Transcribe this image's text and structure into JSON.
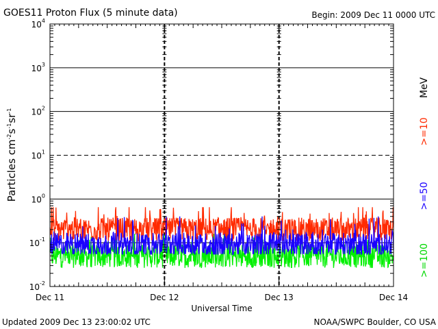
{
  "header": {
    "title": "GOES11 Proton Flux (5 minute data)",
    "begin": "Begin: 2009 Dec 11 0000 UTC"
  },
  "footer": {
    "updated": "Updated 2009 Dec 13 23:00:02 UTC",
    "credit": "NOAA/SWPC Boulder, CO USA"
  },
  "side_labels": {
    "unit": "MeV",
    "ge10": ">=10",
    "ge50": ">=50",
    "ge100": ">=100"
  },
  "chart_data": {
    "type": "line",
    "title": "GOES11 Proton Flux (5 minute data)",
    "xlabel": "Universal Time",
    "ylabel": "Particles cm⁻²s⁻¹sr⁻¹",
    "y_scale": "log",
    "ylim": [
      0.01,
      10000
    ],
    "y_ticks": [
      {
        "base": "10",
        "exp": "4"
      },
      {
        "base": "10",
        "exp": "3"
      },
      {
        "base": "10",
        "exp": "2"
      },
      {
        "base": "10",
        "exp": "1"
      },
      {
        "base": "10",
        "exp": "0"
      },
      {
        "base": "10",
        "exp": "-1"
      },
      {
        "base": "10",
        "exp": "-2"
      }
    ],
    "x_range_days": [
      0,
      3
    ],
    "x_tick_labels": [
      "Dec 11",
      "Dec 12",
      "Dec 13",
      "Dec 14"
    ],
    "grid": true,
    "series": [
      {
        "name": ">=10",
        "unit": "MeV",
        "color": "#ff2a00",
        "typical": 0.2,
        "min": 0.11,
        "max": 0.65
      },
      {
        "name": ">=50",
        "unit": "MeV",
        "color": "#1a00ff",
        "typical": 0.09,
        "min": 0.055,
        "max": 0.4
      },
      {
        "name": ">=100",
        "unit": "MeV",
        "color": "#00f000",
        "typical": 0.05,
        "min": 0.025,
        "max": 0.16
      }
    ]
  }
}
